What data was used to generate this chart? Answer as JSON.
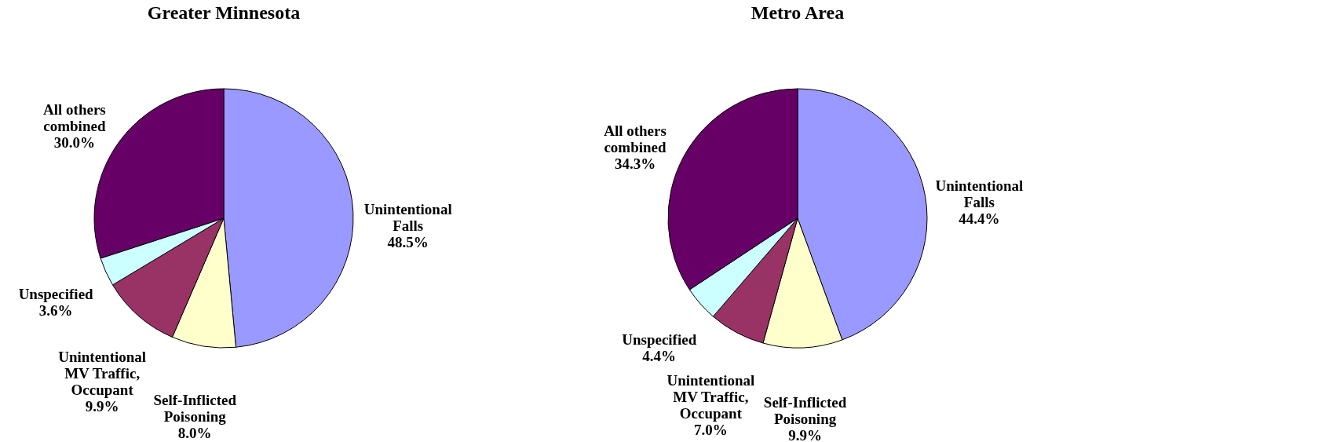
{
  "chart_data": [
    {
      "type": "pie",
      "title": "Greater Minnesota",
      "categories": [
        "Unintentional Falls",
        "Self-Inflicted Poisoning",
        "Unintentional MV Traffic, Occupant",
        "Unspecified",
        "All others combined"
      ],
      "values": [
        48.5,
        8.0,
        9.9,
        3.6,
        30.0
      ],
      "value_labels": [
        "48.5%",
        "8.0%",
        "9.9%",
        "3.6%",
        "30.0%"
      ],
      "colors": [
        "#9999ff",
        "#ffffcc",
        "#993366",
        "#ccffff",
        "#660066"
      ],
      "legend": false
    },
    {
      "type": "pie",
      "title": "Metro Area",
      "categories": [
        "Unintentional Falls",
        "Self-Inflicted Poisoning",
        "Unintentional MV Traffic, Occupant",
        "Unspecified",
        "All others combined"
      ],
      "values": [
        44.4,
        9.9,
        7.0,
        4.4,
        34.3
      ],
      "value_labels": [
        "44.4%",
        "9.9%",
        "7.0%",
        "4.4%",
        "34.3%"
      ],
      "colors": [
        "#9999ff",
        "#ffffcc",
        "#993366",
        "#ccffff",
        "#660066"
      ],
      "legend": false
    }
  ]
}
